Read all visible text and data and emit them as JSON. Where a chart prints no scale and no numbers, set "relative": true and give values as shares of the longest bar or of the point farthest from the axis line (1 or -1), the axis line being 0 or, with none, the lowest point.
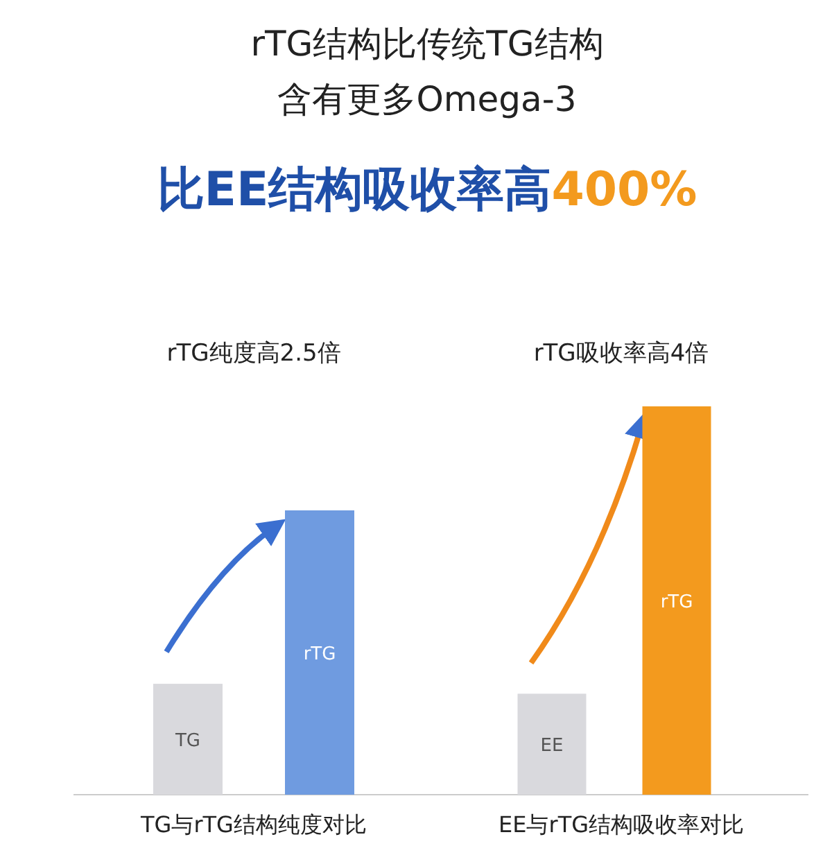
{
  "chart_data": [
    {
      "type": "bar",
      "title": "rTG纯度高2.5倍",
      "xlabel": "TG与rTG结构纯度对比",
      "categories": [
        "TG",
        "rTG"
      ],
      "values": [
        0.39,
        1
      ],
      "colors": [
        "#d9d9dd",
        "#6f9be0"
      ],
      "relative": true,
      "annotations": [
        "rTG结构比传统TG结构",
        "含有更多Omega-3",
        "比EE结构吸收率高400%"
      ]
    },
    {
      "type": "bar",
      "title": "rTG吸收率高4倍",
      "xlabel": "EE与rTG结构吸收率对比",
      "categories": [
        "EE",
        "rTG"
      ],
      "values": [
        0.26,
        1
      ],
      "colors": [
        "#d9d9dd",
        "#f39a1e"
      ],
      "relative": true
    }
  ]
}
